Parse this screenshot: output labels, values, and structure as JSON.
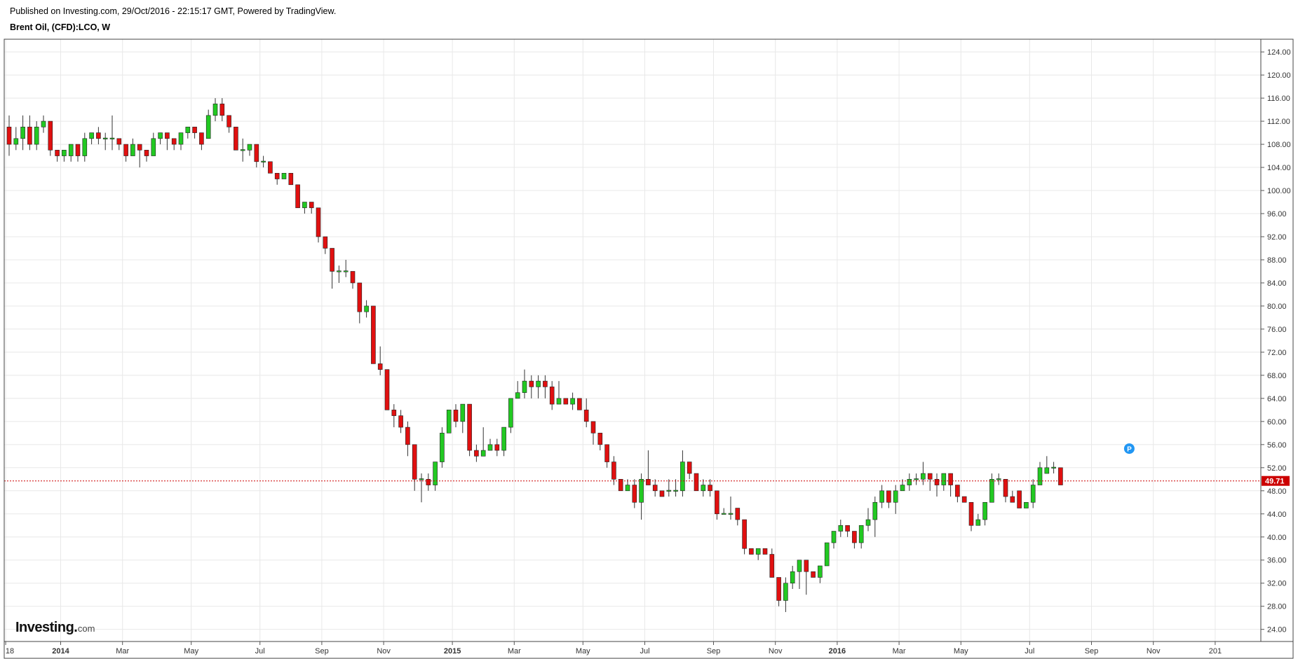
{
  "header": {
    "published": "Published on Investing.com, 29/Oct/2016 - 22:15:17 GMT, Powered by TradingView.",
    "title": "Brent Oil, (CFD):LCO, W"
  },
  "logo": {
    "main": "Investing",
    "dot": ".",
    "domain": "com"
  },
  "marker": {
    "label": "P",
    "color": "#2196f3"
  },
  "colors": {
    "up": "#22c922",
    "down": "#e01010",
    "current_line": "#cc0000",
    "grid": "#e8e8e8"
  },
  "chart_data": {
    "type": "candlestick",
    "title": "Brent Oil, (CFD):LCO, W",
    "y_ticks": [
      "24.00",
      "28.00",
      "32.00",
      "36.00",
      "40.00",
      "44.00",
      "48.00",
      "52.00",
      "56.00",
      "60.00",
      "64.00",
      "68.00",
      "72.00",
      "76.00",
      "80.00",
      "84.00",
      "88.00",
      "92.00",
      "96.00",
      "100.00",
      "104.00",
      "108.00",
      "112.00",
      "116.00",
      "120.00",
      "124.00"
    ],
    "ylim": [
      21.9,
      126.2
    ],
    "x_ticks": [
      {
        "label": "18",
        "week": -0.5,
        "bold": false
      },
      {
        "label": "2014",
        "week": 7.5,
        "bold": true
      },
      {
        "label": "Mar",
        "week": 16.5,
        "bold": false
      },
      {
        "label": "May",
        "week": 26.5,
        "bold": false
      },
      {
        "label": "Jul",
        "week": 36.5,
        "bold": false
      },
      {
        "label": "Sep",
        "week": 45.5,
        "bold": false
      },
      {
        "label": "Nov",
        "week": 54.5,
        "bold": false
      },
      {
        "label": "2015",
        "week": 64.5,
        "bold": true
      },
      {
        "label": "Mar",
        "week": 73.5,
        "bold": false
      },
      {
        "label": "May",
        "week": 83.5,
        "bold": false
      },
      {
        "label": "Jul",
        "week": 92.5,
        "bold": false
      },
      {
        "label": "Sep",
        "week": 102.5,
        "bold": false
      },
      {
        "label": "Nov",
        "week": 111.5,
        "bold": false
      },
      {
        "label": "2016",
        "week": 120.5,
        "bold": true
      },
      {
        "label": "Mar",
        "week": 129.5,
        "bold": false
      },
      {
        "label": "May",
        "week": 138.5,
        "bold": false
      },
      {
        "label": "Jul",
        "week": 148.5,
        "bold": false
      },
      {
        "label": "Sep",
        "week": 157.5,
        "bold": false
      },
      {
        "label": "Nov",
        "week": 166.5,
        "bold": false
      },
      {
        "label": "201",
        "week": 175.5,
        "bold": false
      }
    ],
    "current_price": 49.71,
    "current_label": "49.71",
    "marker_week": 163,
    "marker_price": 55.3,
    "candles": [
      [
        111,
        108,
        113,
        106
      ],
      [
        108,
        109,
        111,
        107
      ],
      [
        109,
        111,
        113,
        107
      ],
      [
        111,
        108,
        113,
        107
      ],
      [
        108,
        111,
        112,
        107
      ],
      [
        111,
        112,
        113,
        110
      ],
      [
        112,
        107,
        112,
        106
      ],
      [
        107,
        106,
        107,
        105
      ],
      [
        106,
        107,
        107,
        105
      ],
      [
        106,
        108,
        108,
        105
      ],
      [
        108,
        106,
        108,
        105
      ],
      [
        106,
        109,
        110,
        105
      ],
      [
        109,
        110,
        110,
        108
      ],
      [
        110,
        109,
        111,
        108
      ],
      [
        109,
        109,
        110,
        107
      ],
      [
        109,
        109,
        113,
        107
      ],
      [
        109,
        108,
        109,
        107
      ],
      [
        108,
        106,
        108,
        105
      ],
      [
        106,
        108,
        109,
        106
      ],
      [
        108,
        107,
        108,
        104
      ],
      [
        107,
        106,
        107,
        105
      ],
      [
        106,
        109,
        110,
        106
      ],
      [
        109,
        110,
        110,
        108
      ],
      [
        110,
        109,
        110,
        107
      ],
      [
        109,
        108,
        109,
        107
      ],
      [
        108,
        110,
        110,
        107
      ],
      [
        110,
        111,
        111,
        109
      ],
      [
        111,
        110,
        111,
        109
      ],
      [
        110,
        108,
        110,
        107
      ],
      [
        109,
        113,
        114,
        109
      ],
      [
        113,
        115,
        116,
        112
      ],
      [
        115,
        113,
        116,
        112
      ],
      [
        113,
        111,
        113,
        110
      ],
      [
        111,
        107,
        111,
        107
      ],
      [
        107,
        107,
        109,
        105
      ],
      [
        107,
        108,
        108,
        106
      ],
      [
        108,
        105,
        108,
        104
      ],
      [
        105,
        105,
        106,
        104
      ],
      [
        105,
        103,
        105,
        103
      ],
      [
        103,
        102,
        103,
        101
      ],
      [
        102,
        103,
        103,
        102
      ],
      [
        103,
        101,
        103,
        101
      ],
      [
        101,
        97,
        101,
        97
      ],
      [
        97,
        98,
        98,
        96
      ],
      [
        98,
        97,
        98,
        96
      ],
      [
        97,
        92,
        97,
        91
      ],
      [
        92,
        90,
        92,
        89
      ],
      [
        90,
        86,
        90,
        83
      ],
      [
        86,
        86,
        87,
        84
      ],
      [
        86,
        86,
        88,
        85
      ],
      [
        86,
        84,
        86,
        83
      ],
      [
        84,
        79,
        84,
        77
      ],
      [
        79,
        80,
        81,
        78
      ],
      [
        80,
        70,
        80,
        70
      ],
      [
        70,
        69,
        73,
        68
      ],
      [
        69,
        62,
        69,
        62
      ],
      [
        62,
        61,
        63,
        59
      ],
      [
        61,
        59,
        62,
        58
      ],
      [
        59,
        56,
        60,
        54
      ],
      [
        56,
        50,
        56,
        48
      ],
      [
        50,
        50,
        51,
        46
      ],
      [
        50,
        49,
        51,
        48
      ],
      [
        49,
        53,
        53,
        48
      ],
      [
        53,
        58,
        59,
        52
      ],
      [
        58,
        62,
        62,
        58
      ],
      [
        62,
        60,
        63,
        59
      ],
      [
        60,
        63,
        63,
        58
      ],
      [
        63,
        55,
        63,
        54
      ],
      [
        55,
        54,
        56,
        53
      ],
      [
        54,
        55,
        59,
        54
      ],
      [
        55,
        56,
        57,
        55
      ],
      [
        56,
        55,
        57,
        54
      ],
      [
        55,
        59,
        59,
        54
      ],
      [
        59,
        64,
        64,
        58
      ],
      [
        64,
        65,
        67,
        64
      ],
      [
        65,
        67,
        69,
        64
      ],
      [
        67,
        66,
        68,
        64
      ],
      [
        66,
        67,
        68,
        64
      ],
      [
        67,
        66,
        68,
        64
      ],
      [
        66,
        63,
        67,
        62
      ],
      [
        63,
        64,
        67,
        63
      ],
      [
        64,
        63,
        64,
        63
      ],
      [
        63,
        64,
        65,
        62
      ],
      [
        64,
        62,
        64,
        62
      ],
      [
        62,
        60,
        64,
        59
      ],
      [
        60,
        58,
        60,
        56
      ],
      [
        58,
        56,
        58,
        55
      ],
      [
        56,
        53,
        56,
        52
      ],
      [
        53,
        50,
        54,
        49
      ],
      [
        50,
        48,
        50,
        48
      ],
      [
        48,
        49,
        50,
        48
      ],
      [
        49,
        46,
        50,
        45
      ],
      [
        46,
        50,
        51,
        43
      ],
      [
        50,
        49,
        55,
        49
      ],
      [
        49,
        48,
        50,
        47
      ],
      [
        48,
        47,
        48,
        47
      ],
      [
        48,
        48,
        50,
        47
      ],
      [
        48,
        48,
        50,
        47
      ],
      [
        48,
        53,
        55,
        47
      ],
      [
        53,
        51,
        53,
        50
      ],
      [
        51,
        48,
        51,
        48
      ],
      [
        48,
        49,
        50,
        47
      ],
      [
        49,
        48,
        50,
        47
      ],
      [
        48,
        44,
        48,
        43
      ],
      [
        44,
        44,
        45,
        44
      ],
      [
        44,
        44,
        47,
        43
      ],
      [
        45,
        43,
        45,
        42
      ],
      [
        43,
        38,
        43,
        37
      ],
      [
        38,
        37,
        38,
        37
      ],
      [
        37,
        38,
        38,
        36
      ],
      [
        38,
        37,
        38,
        37
      ],
      [
        37,
        33,
        38,
        33
      ],
      [
        33,
        29,
        33,
        28
      ],
      [
        29,
        32,
        33,
        27
      ],
      [
        32,
        34,
        35,
        31
      ],
      [
        34,
        36,
        36,
        31
      ],
      [
        36,
        34,
        36,
        30
      ],
      [
        34,
        33,
        34,
        33
      ],
      [
        33,
        35,
        35,
        32
      ],
      [
        35,
        39,
        39,
        35
      ],
      [
        39,
        41,
        41,
        38
      ],
      [
        41,
        42,
        43,
        40
      ],
      [
        42,
        41,
        42,
        40
      ],
      [
        41,
        39,
        41,
        38
      ],
      [
        39,
        42,
        42,
        38
      ],
      [
        42,
        43,
        45,
        41
      ],
      [
        43,
        46,
        47,
        40
      ],
      [
        46,
        48,
        49,
        45
      ],
      [
        48,
        46,
        48,
        45
      ],
      [
        46,
        48,
        49,
        44
      ],
      [
        48,
        49,
        50,
        48
      ],
      [
        49,
        50,
        51,
        48
      ],
      [
        50,
        50,
        51,
        49
      ],
      [
        50,
        51,
        53,
        49
      ],
      [
        51,
        50,
        51,
        48
      ],
      [
        50,
        49,
        51,
        47
      ],
      [
        49,
        51,
        51,
        48
      ],
      [
        51,
        49,
        51,
        47
      ],
      [
        49,
        47,
        49,
        46
      ],
      [
        47,
        46,
        47,
        46
      ],
      [
        46,
        42,
        46,
        41
      ],
      [
        42,
        43,
        44,
        42
      ],
      [
        43,
        46,
        46,
        42
      ],
      [
        46,
        50,
        51,
        46
      ],
      [
        50,
        50,
        51,
        49
      ],
      [
        50,
        47,
        50,
        46
      ],
      [
        47,
        46,
        48,
        46
      ],
      [
        48,
        45,
        48,
        45
      ],
      [
        45,
        46,
        46,
        45
      ],
      [
        46,
        49,
        50,
        45
      ],
      [
        49,
        52,
        53,
        49
      ],
      [
        51,
        52,
        54,
        51
      ],
      [
        52,
        52,
        53,
        51
      ],
      [
        52,
        49,
        52,
        49
      ]
    ]
  }
}
